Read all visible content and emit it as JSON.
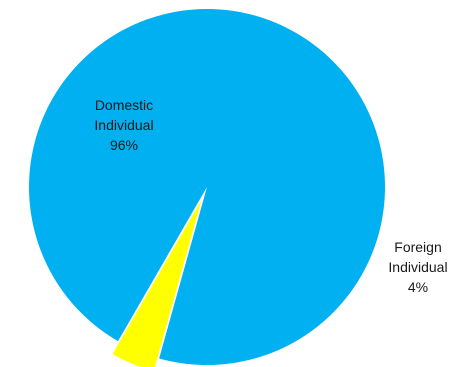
{
  "chart_data": {
    "type": "pie",
    "slices": [
      {
        "label_lines": [
          "Domestic",
          "Individual"
        ],
        "value": 96,
        "value_label": "96%",
        "color": "#00B0F0"
      },
      {
        "label_lines": [
          "Foreign",
          "Individual"
        ],
        "value": 4,
        "value_label": "4%",
        "color": "#FFFF00"
      }
    ]
  }
}
